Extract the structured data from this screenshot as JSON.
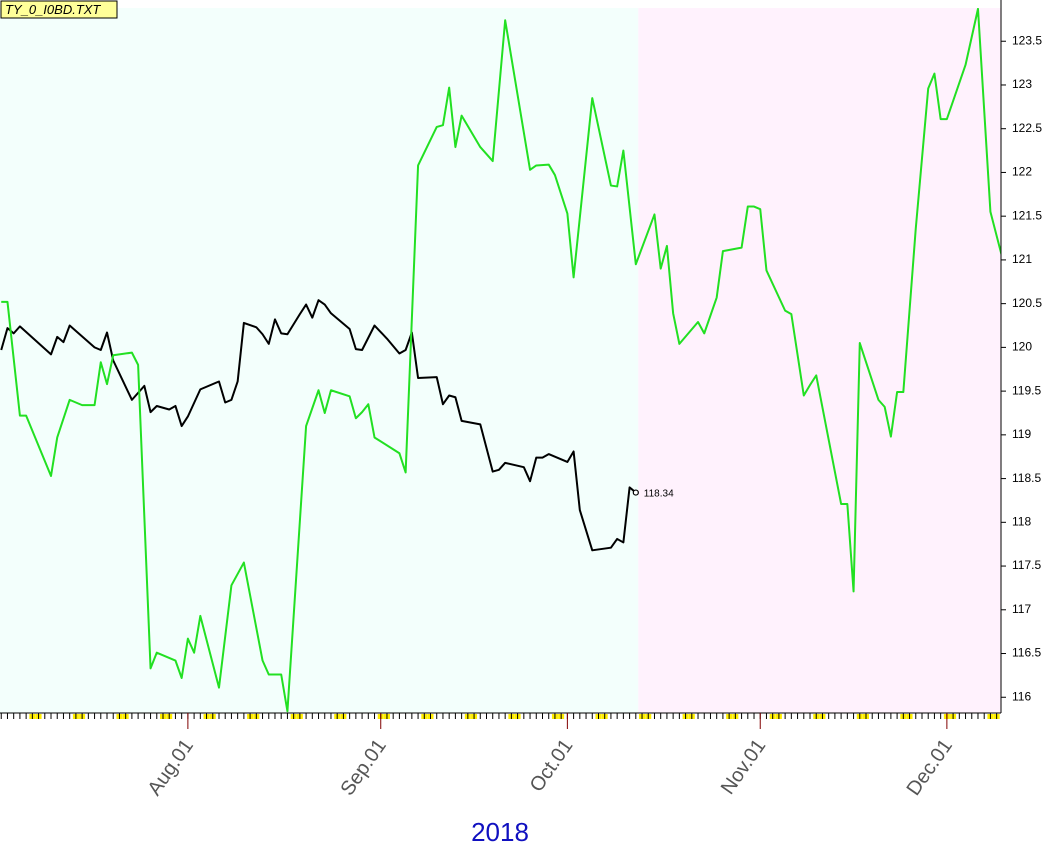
{
  "chart_data": {
    "type": "line",
    "title": "TY_0_I0BD.TXT",
    "xlabel": "2018",
    "xlim": [
      0.8,
      161.7
    ],
    "xticks": [
      {
        "value": 31,
        "label": "Aug.01"
      },
      {
        "value": 62,
        "label": "Sep.01"
      },
      {
        "value": 92,
        "label": "Oct.01"
      },
      {
        "value": 123,
        "label": "Nov.01"
      },
      {
        "value": 153,
        "label": "Dec.01"
      }
    ],
    "ylim": [
      115.82,
      123.88
    ],
    "yticks": [
      116,
      116.5,
      117,
      117.5,
      118,
      118.5,
      119,
      119.5,
      120,
      120.5,
      121,
      121.5,
      122,
      122.5,
      123,
      123.5
    ],
    "shading": [
      {
        "from": 0.8,
        "to": 103.4,
        "color": "#f3fffc"
      },
      {
        "from": 103.4,
        "to": 161.7,
        "color": "#fff2fd"
      }
    ],
    "series": [
      {
        "color": "#000000",
        "end_label": "118.34",
        "x": [
          1,
          2,
          3,
          4,
          9,
          10,
          11,
          12,
          16,
          17,
          18,
          19,
          22,
          24,
          25,
          26,
          28,
          29,
          30,
          31,
          33,
          36,
          37,
          38,
          39,
          40,
          42,
          43,
          44,
          45,
          46,
          47,
          49,
          50,
          51,
          52,
          53,
          54,
          57,
          58,
          59,
          61,
          63,
          65,
          66,
          67,
          68,
          71,
          72,
          73,
          74,
          75,
          78,
          80,
          81,
          82,
          85,
          86,
          87,
          88,
          89,
          92,
          93,
          94,
          96,
          99,
          100,
          101,
          102,
          103
        ],
        "values": [
          119.97,
          120.22,
          120.16,
          120.24,
          119.92,
          120.12,
          120.06,
          120.25,
          120.0,
          119.97,
          120.17,
          119.85,
          119.4,
          119.56,
          119.26,
          119.33,
          119.29,
          119.33,
          119.1,
          119.21,
          119.52,
          119.61,
          119.37,
          119.4,
          119.61,
          120.28,
          120.23,
          120.15,
          120.04,
          120.32,
          120.16,
          120.15,
          120.38,
          120.49,
          120.34,
          120.54,
          120.49,
          120.39,
          120.21,
          119.98,
          119.97,
          120.25,
          120.1,
          119.93,
          119.97,
          120.17,
          119.65,
          119.66,
          119.35,
          119.45,
          119.43,
          119.16,
          119.12,
          118.58,
          118.6,
          118.68,
          118.63,
          118.47,
          118.74,
          118.74,
          118.78,
          118.69,
          118.81,
          118.14,
          117.68,
          117.71,
          117.81,
          117.77,
          118.4,
          118.34
        ]
      },
      {
        "color": "#22e022",
        "x": [
          1,
          2,
          4,
          5,
          9,
          10,
          12,
          14,
          16,
          17,
          18,
          19,
          22,
          23,
          25,
          26,
          29,
          30,
          31,
          32,
          33,
          36,
          38,
          40,
          43,
          44,
          46,
          47,
          50,
          52,
          53,
          54,
          57,
          58,
          59,
          60,
          61,
          65,
          66,
          68,
          71,
          72,
          73,
          74,
          75,
          78,
          80,
          82,
          86,
          87,
          89,
          90,
          92,
          93,
          96,
          99,
          100,
          101,
          103,
          106,
          107,
          108,
          109,
          110,
          113,
          114,
          116,
          117,
          120,
          121,
          122,
          123,
          124,
          127,
          128,
          130,
          131,
          132,
          136,
          137,
          138,
          139,
          142,
          143,
          144,
          145,
          146,
          148,
          150,
          151,
          152,
          153,
          156,
          158,
          160,
          162
        ],
        "values": [
          120.52,
          120.52,
          119.22,
          119.22,
          118.53,
          118.97,
          119.4,
          119.34,
          119.34,
          119.83,
          119.58,
          119.91,
          119.94,
          119.8,
          116.33,
          116.51,
          116.42,
          116.22,
          116.67,
          116.51,
          116.93,
          116.11,
          117.28,
          117.54,
          116.42,
          116.26,
          116.26,
          115.84,
          119.1,
          119.51,
          119.25,
          119.51,
          119.44,
          119.19,
          119.26,
          119.35,
          118.97,
          118.79,
          118.57,
          122.08,
          122.52,
          122.54,
          122.97,
          122.29,
          122.65,
          122.29,
          122.13,
          123.74,
          122.03,
          122.08,
          122.09,
          121.97,
          121.53,
          120.8,
          122.85,
          121.85,
          121.84,
          122.25,
          120.95,
          121.52,
          120.9,
          121.16,
          120.39,
          120.04,
          120.29,
          120.16,
          120.57,
          121.1,
          121.14,
          121.61,
          121.61,
          121.58,
          120.88,
          120.42,
          120.38,
          119.45,
          119.57,
          119.68,
          118.21,
          118.21,
          117.21,
          120.05,
          119.4,
          119.32,
          118.98,
          119.49,
          119.49,
          121.36,
          122.96,
          123.13,
          122.61,
          122.61,
          123.23,
          123.87,
          121.55,
          121.0
        ]
      }
    ]
  }
}
